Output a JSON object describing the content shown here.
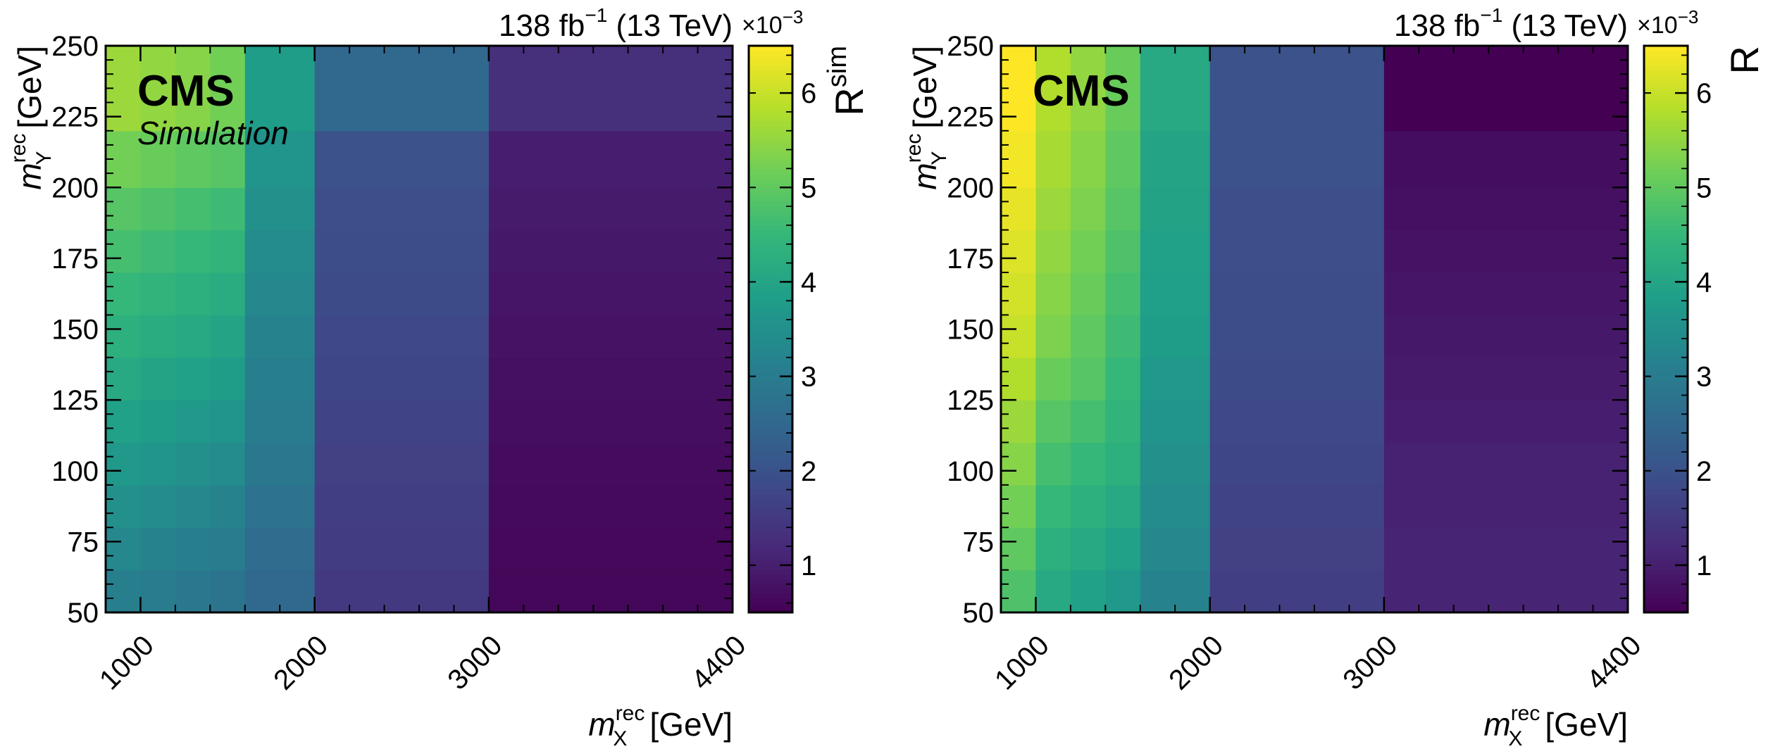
{
  "chart_data": [
    {
      "type": "heatmap",
      "lumi_label": "138 fb",
      "lumi_sup": "−1",
      "energy_label": "(13 TeV)",
      "experiment_label": "CMS",
      "sublabel": "Simulation",
      "xlabel_italic": "m",
      "xlabel_sup": "rec",
      "xlabel_sub": "X",
      "xlabel_unit": "[GeV]",
      "ylabel_italic": "m",
      "ylabel_sup": "rec",
      "ylabel_sub": "Y",
      "ylabel_unit": "[GeV]",
      "xlim": [
        800,
        4400
      ],
      "ylim": [
        50,
        250
      ],
      "xticks": [
        "1000",
        "2000",
        "3000",
        "4400"
      ],
      "yticks": [
        "50",
        "75",
        "100",
        "125",
        "150",
        "175",
        "200",
        "225",
        "250"
      ],
      "x_edges": [
        800,
        1000,
        1200,
        1400,
        1600,
        2000,
        3000,
        4400
      ],
      "y_edges": [
        50,
        65,
        80,
        95,
        110,
        125,
        140,
        155,
        170,
        185,
        200,
        220,
        250
      ],
      "colorbar_label": "R",
      "colorbar_label_sup": "sim",
      "colorbar_exponent": "×10",
      "colorbar_exponent_sup": "−3",
      "colorbar_range": [
        0.5,
        6.5
      ],
      "colorbar_ticks": [
        "1",
        "2",
        "3",
        "4",
        "5",
        "6"
      ],
      "values": [
        [
          3.1,
          3.0,
          2.9,
          2.8,
          2.5,
          1.5,
          0.6
        ],
        [
          3.3,
          3.2,
          3.1,
          3.0,
          2.6,
          1.55,
          0.62
        ],
        [
          3.5,
          3.4,
          3.3,
          3.2,
          2.75,
          1.6,
          0.65
        ],
        [
          3.7,
          3.6,
          3.5,
          3.4,
          2.9,
          1.65,
          0.68
        ],
        [
          3.9,
          3.8,
          3.7,
          3.6,
          3.0,
          1.7,
          0.72
        ],
        [
          4.1,
          4.0,
          3.9,
          3.8,
          3.1,
          1.75,
          0.76
        ],
        [
          4.3,
          4.2,
          4.1,
          4.0,
          3.2,
          1.8,
          0.8
        ],
        [
          4.5,
          4.4,
          4.3,
          4.2,
          3.3,
          1.85,
          0.85
        ],
        [
          4.7,
          4.6,
          4.5,
          4.4,
          3.4,
          1.9,
          0.9
        ],
        [
          4.9,
          4.8,
          4.7,
          4.6,
          3.5,
          1.95,
          0.95
        ],
        [
          5.2,
          5.1,
          5.0,
          4.9,
          3.6,
          2.0,
          1.0
        ],
        [
          5.6,
          5.5,
          5.4,
          5.2,
          3.8,
          2.5,
          1.3
        ]
      ]
    },
    {
      "type": "heatmap",
      "lumi_label": "138 fb",
      "lumi_sup": "−1",
      "energy_label": "(13 TeV)",
      "experiment_label": "CMS",
      "sublabel": "",
      "xlabel_italic": "m",
      "xlabel_sup": "rec",
      "xlabel_sub": "X",
      "xlabel_unit": "[GeV]",
      "ylabel_italic": "m",
      "ylabel_sup": "rec",
      "ylabel_sub": "Y",
      "ylabel_unit": "[GeV]",
      "xlim": [
        800,
        4400
      ],
      "ylim": [
        50,
        250
      ],
      "xticks": [
        "1000",
        "2000",
        "3000",
        "4400"
      ],
      "yticks": [
        "50",
        "75",
        "100",
        "125",
        "150",
        "175",
        "200",
        "225",
        "250"
      ],
      "x_edges": [
        800,
        1000,
        1200,
        1400,
        1600,
        2000,
        3000,
        4400
      ],
      "y_edges": [
        50,
        65,
        80,
        95,
        110,
        125,
        140,
        155,
        170,
        185,
        200,
        220,
        250
      ],
      "colorbar_label": "R",
      "colorbar_label_sup": "",
      "colorbar_exponent": "×10",
      "colorbar_exponent_sup": "−3",
      "colorbar_range": [
        0.5,
        6.5
      ],
      "colorbar_ticks": [
        "1",
        "2",
        "3",
        "4",
        "5",
        "6"
      ],
      "values": [
        [
          4.8,
          4.1,
          3.9,
          3.7,
          3.2,
          1.6,
          1.1
        ],
        [
          5.0,
          4.3,
          4.1,
          3.9,
          3.3,
          1.65,
          1.1
        ],
        [
          5.2,
          4.5,
          4.3,
          4.1,
          3.4,
          1.7,
          1.05
        ],
        [
          5.4,
          4.7,
          4.5,
          4.3,
          3.5,
          1.75,
          1.05
        ],
        [
          5.6,
          4.9,
          4.7,
          4.4,
          3.6,
          1.8,
          1.0
        ],
        [
          5.8,
          5.1,
          4.9,
          4.5,
          3.7,
          1.85,
          0.95
        ],
        [
          6.0,
          5.3,
          5.0,
          4.6,
          3.8,
          1.9,
          0.9
        ],
        [
          6.1,
          5.4,
          5.1,
          4.7,
          3.85,
          1.9,
          0.85
        ],
        [
          6.2,
          5.5,
          5.2,
          4.8,
          3.9,
          1.95,
          0.8
        ],
        [
          6.3,
          5.6,
          5.3,
          4.9,
          3.95,
          1.95,
          0.75
        ],
        [
          6.4,
          5.7,
          5.4,
          5.0,
          4.0,
          2.0,
          0.7
        ],
        [
          6.5,
          5.8,
          5.5,
          5.1,
          4.1,
          2.0,
          0.5
        ]
      ]
    }
  ]
}
